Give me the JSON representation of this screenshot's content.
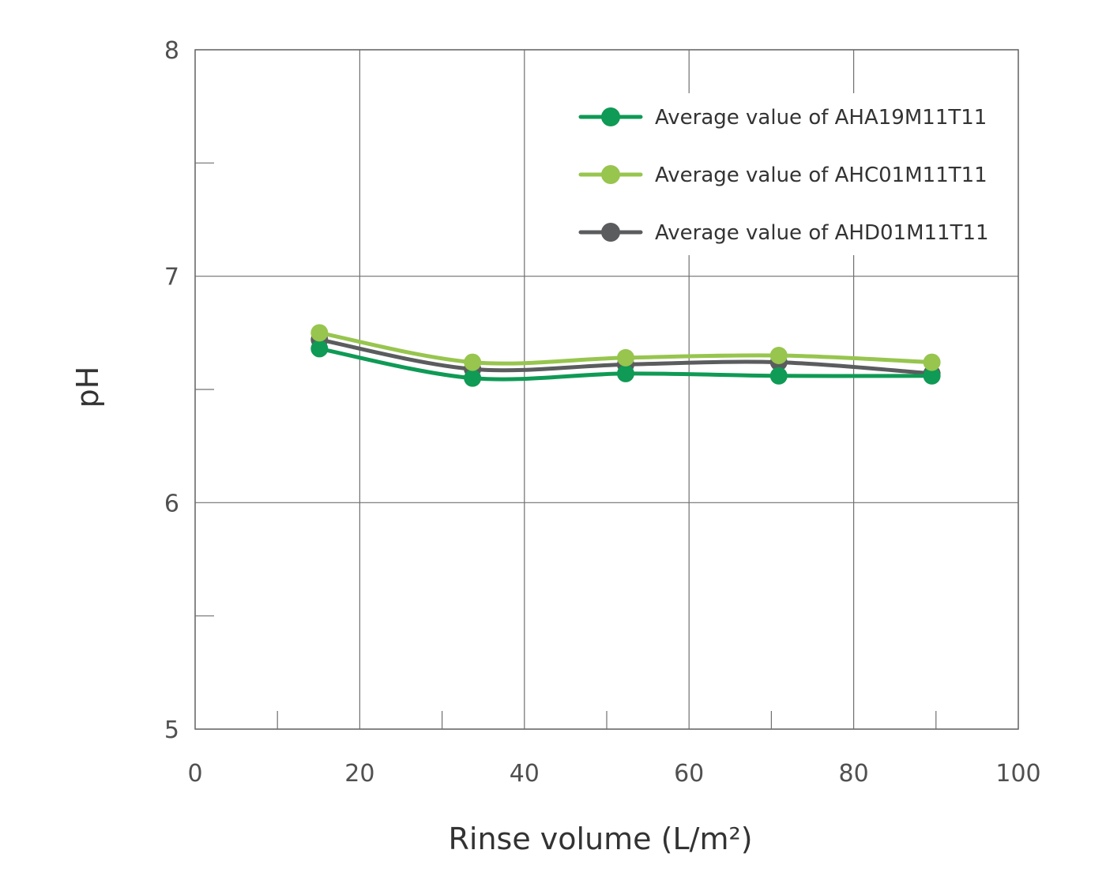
{
  "chart_data": {
    "type": "line",
    "xlabel": "Rinse volume (L/m²)",
    "ylabel": "pH",
    "xlim": [
      0,
      100
    ],
    "ylim": [
      5,
      8
    ],
    "x_ticks": [
      0,
      20,
      40,
      60,
      80,
      100
    ],
    "y_ticks": [
      5,
      6,
      7,
      8
    ],
    "x_minor_ticks": [
      10,
      30,
      50,
      70,
      90
    ],
    "y_minor_ticks": [
      5.5,
      6.5,
      7.5
    ],
    "grid": true,
    "legend_position": "top-right",
    "series": [
      {
        "name": "Average value of AHA19M11T11",
        "color": "#0f9a55",
        "x": [
          15.1,
          33.7,
          52.3,
          70.9,
          89.5
        ],
        "y": [
          6.68,
          6.55,
          6.57,
          6.56,
          6.56
        ]
      },
      {
        "name": "Average value of AHC01M11T11",
        "color": "#97c54e",
        "x": [
          15.1,
          33.7,
          52.3,
          70.9,
          89.5
        ],
        "y": [
          6.75,
          6.62,
          6.64,
          6.65,
          6.62
        ]
      },
      {
        "name": "Average value of AHD01M11T11",
        "color": "#5a5c5e",
        "x": [
          15.1,
          33.7,
          52.3,
          70.9,
          89.5
        ],
        "y": [
          6.72,
          6.59,
          6.61,
          6.62,
          6.57
        ]
      }
    ]
  }
}
